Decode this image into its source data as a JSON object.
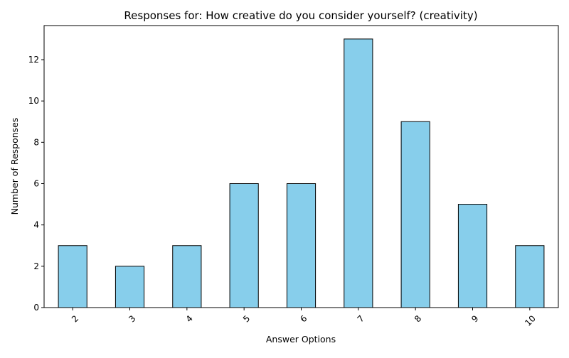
{
  "chart_data": {
    "type": "bar",
    "title": "Responses for: How creative do you consider yourself? (creativity)",
    "xlabel": "Answer Options",
    "ylabel": "Number of Responses",
    "categories": [
      "2",
      "3",
      "4",
      "5",
      "6",
      "7",
      "8",
      "9",
      "10"
    ],
    "values": [
      3,
      2,
      3,
      6,
      6,
      13,
      9,
      5,
      3
    ],
    "ylim": [
      0,
      13.65
    ],
    "yticks": [
      "0",
      "2",
      "4",
      "6",
      "8",
      "10",
      "12"
    ],
    "grid": false,
    "legend": "none",
    "bar_color": "#87CEEB",
    "bar_edge_color": "#000000"
  }
}
